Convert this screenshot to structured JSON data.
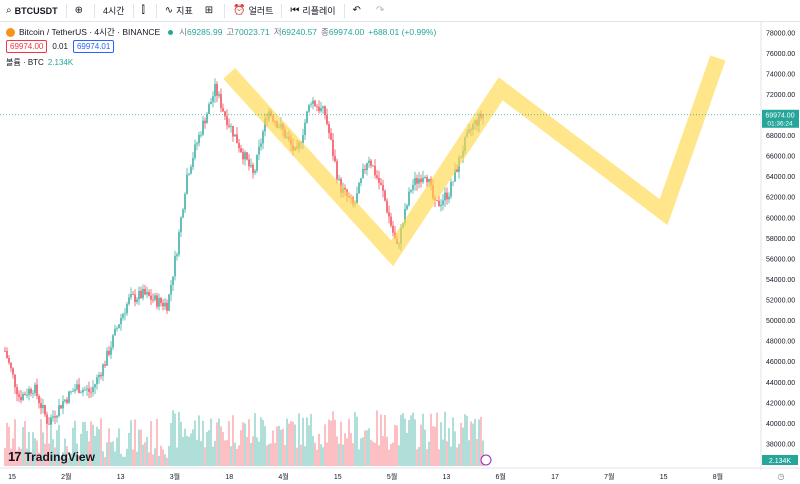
{
  "toolbar": {
    "symbol": "BTCUSDT",
    "interval": "4시간",
    "indicators": "지표",
    "alert": "얼러트",
    "replay": "리플레이"
  },
  "legend": {
    "pair": "Bitcoin / TetherUS · 4시간 · BINANCE",
    "open_label": "시",
    "open": "69285.99",
    "high_label": "고",
    "high": "70023.71",
    "low_label": "저",
    "low": "69240.57",
    "close_label": "종",
    "close": "69974.00",
    "change": "+688.01 (+0.99%)",
    "sell_price": "69974.00",
    "spread": "0.01",
    "buy_price": "69974.01",
    "volume_label": "볼륨 · BTC",
    "volume_value": "2.134K"
  },
  "logo": "TradingView",
  "colors": {
    "up": "#26a69a",
    "down": "#f23645",
    "highlight": "#ffd84d"
  },
  "chart_data": {
    "type": "candlestick",
    "ylim": [
      36000,
      79000
    ],
    "y_ticks": [
      "78000.00",
      "76000.00",
      "74000.00",
      "72000.00",
      "70000.00",
      "68000.00",
      "66000.00",
      "64000.00",
      "62000.00",
      "60000.00",
      "58000.00",
      "56000.00",
      "54000.00",
      "52000.00",
      "50000.00",
      "48000.00",
      "46000.00",
      "44000.00",
      "42000.00",
      "40000.00",
      "38000.00"
    ],
    "x_ticks": [
      "15",
      "2월",
      "13",
      "3월",
      "18",
      "4월",
      "15",
      "5월",
      "13",
      "6월",
      "17",
      "7월",
      "15",
      "8월"
    ],
    "last_price": "69974.00",
    "countdown": "01:36:24",
    "last_volume": "2.134K",
    "price_path": [
      {
        "t": 0,
        "p": 47000
      },
      {
        "t": 0.03,
        "p": 42500
      },
      {
        "t": 0.06,
        "p": 43500
      },
      {
        "t": 0.09,
        "p": 40000
      },
      {
        "t": 0.12,
        "p": 42000
      },
      {
        "t": 0.15,
        "p": 43500
      },
      {
        "t": 0.18,
        "p": 43000
      },
      {
        "t": 0.21,
        "p": 46000
      },
      {
        "t": 0.24,
        "p": 50000
      },
      {
        "t": 0.26,
        "p": 52000
      },
      {
        "t": 0.29,
        "p": 52500
      },
      {
        "t": 0.32,
        "p": 51800
      },
      {
        "t": 0.34,
        "p": 51500
      },
      {
        "t": 0.36,
        "p": 57000
      },
      {
        "t": 0.38,
        "p": 64000
      },
      {
        "t": 0.41,
        "p": 68500
      },
      {
        "t": 0.44,
        "p": 72500
      },
      {
        "t": 0.46,
        "p": 70000
      },
      {
        "t": 0.49,
        "p": 67000
      },
      {
        "t": 0.52,
        "p": 64000
      },
      {
        "t": 0.55,
        "p": 70500
      },
      {
        "t": 0.58,
        "p": 68500
      },
      {
        "t": 0.61,
        "p": 66000
      },
      {
        "t": 0.64,
        "p": 71500
      },
      {
        "t": 0.67,
        "p": 70000
      },
      {
        "t": 0.7,
        "p": 63000
      },
      {
        "t": 0.73,
        "p": 61000
      },
      {
        "t": 0.76,
        "p": 66000
      },
      {
        "t": 0.79,
        "p": 62500
      },
      {
        "t": 0.82,
        "p": 57000
      },
      {
        "t": 0.85,
        "p": 63000
      },
      {
        "t": 0.88,
        "p": 64500
      },
      {
        "t": 0.9,
        "p": 61000
      },
      {
        "t": 0.93,
        "p": 62500
      },
      {
        "t": 0.96,
        "p": 67000
      },
      {
        "t": 0.98,
        "p": 69000
      },
      {
        "t": 1.0,
        "p": 69974
      }
    ],
    "highlight_path": [
      {
        "x": "18",
        "y": 74000
      },
      {
        "x": "5월",
        "y": 56500
      },
      {
        "x": "6월",
        "y": 72500
      },
      {
        "x": "15",
        "y": 60500
      },
      {
        "x": "8월",
        "y": 75500
      }
    ]
  }
}
